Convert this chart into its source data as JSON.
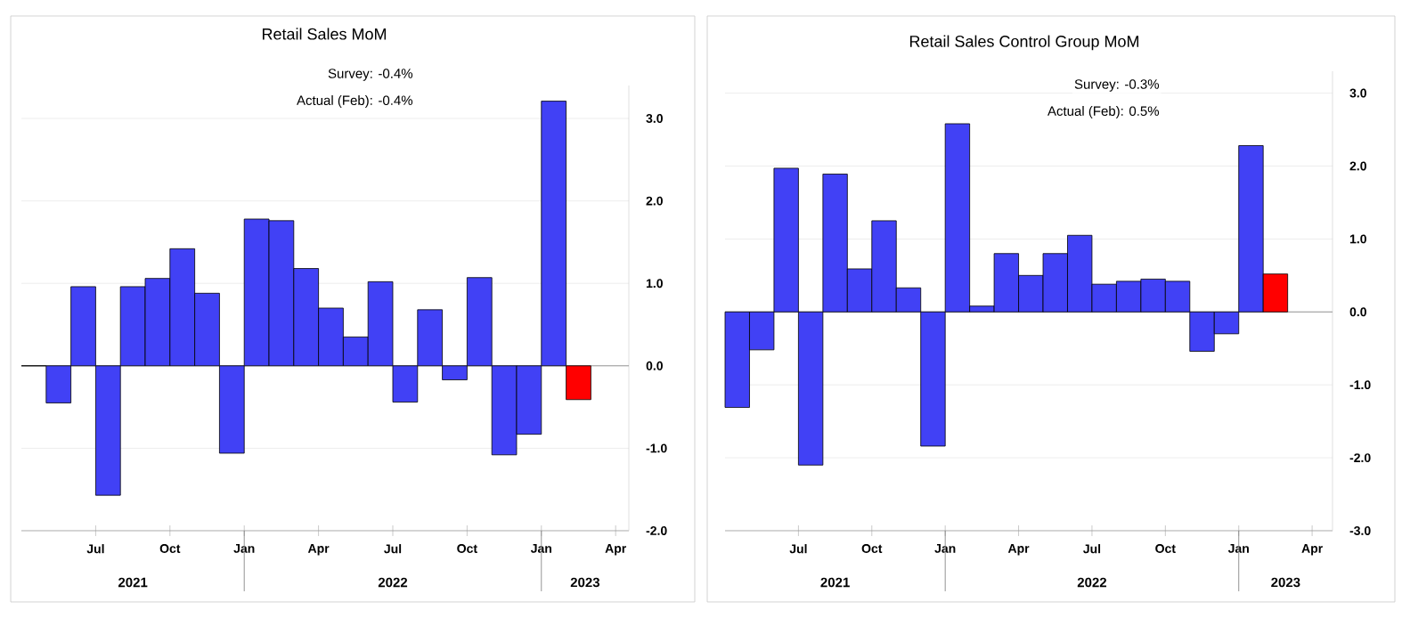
{
  "chart_data": [
    {
      "type": "bar",
      "title": "Retail Sales MoM",
      "annotations": [
        "Survey:  -0.4%",
        "Actual (Feb):  -0.4%",
        "2021",
        "2022",
        "2023"
      ],
      "x": [
        "2021-04-16",
        "2021-05-16",
        "2021-06-16",
        "2021-07-16",
        "2021-08-16",
        "2021-09-16",
        "2021-10-16",
        "2021-11-16",
        "2021-12-16",
        "2022-01-16",
        "2022-02-16",
        "2022-03-16",
        "2022-04-16",
        "2022-05-16",
        "2022-06-16",
        "2022-07-16",
        "2022-08-16",
        "2022-09-16",
        "2022-10-16",
        "2022-11-16",
        "2022-12-16",
        "2023-01-16",
        "2023-02-16"
      ],
      "values": [
        0.0,
        -0.45,
        0.96,
        -1.57,
        0.96,
        1.06,
        1.42,
        0.88,
        -1.06,
        1.78,
        1.76,
        1.18,
        0.7,
        0.35,
        1.02,
        -0.44,
        0.68,
        -0.17,
        1.07,
        -1.08,
        -0.83,
        3.21,
        -0.41
      ],
      "colors": [
        "#4141f5",
        "#4141f5",
        "#4141f5",
        "#4141f5",
        "#4141f5",
        "#4141f5",
        "#4141f5",
        "#4141f5",
        "#4141f5",
        "#4141f5",
        "#4141f5",
        "#4141f5",
        "#4141f5",
        "#4141f5",
        "#4141f5",
        "#4141f5",
        "#4141f5",
        "#4141f5",
        "#4141f5",
        "#4141f5",
        "#4141f5",
        "#4141f5",
        "#ff0000"
      ],
      "xlim": [
        "2021-04-01",
        "2023-04-17"
      ],
      "xticks": [
        {
          "value": "2021-07",
          "label": "Jul"
        },
        {
          "value": "2021-10",
          "label": "Oct"
        },
        {
          "value": "2022-01",
          "label": "Jan"
        },
        {
          "value": "2022-04",
          "label": "Apr"
        },
        {
          "value": "2022-07",
          "label": "Jul"
        },
        {
          "value": "2022-10",
          "label": "Oct"
        },
        {
          "value": "2023-01",
          "label": "Jan"
        },
        {
          "value": "2023-04",
          "label": "Apr"
        }
      ],
      "ylim": [
        -2,
        3.4
      ],
      "yticks": [
        {
          "value": -2,
          "label": "-2.0"
        },
        {
          "value": -1,
          "label": "-1.0"
        },
        {
          "value": 0,
          "label": "0.0"
        },
        {
          "value": 1,
          "label": "1.0"
        },
        {
          "value": 2,
          "label": "2.0"
        },
        {
          "value": 3,
          "label": "3.0"
        }
      ],
      "ref_lines": [
        {
          "axis": "y",
          "value": 0,
          "color": "#808080"
        }
      ],
      "grid": "y"
    },
    {
      "type": "bar",
      "title": "Retail Sales Control Group MoM",
      "annotations": [
        "Survey:  -0.3%",
        "Actual (Feb):  0.5%",
        "2021",
        "2022",
        "2023"
      ],
      "x": [
        "2021-04-16",
        "2021-05-16",
        "2021-06-16",
        "2021-07-16",
        "2021-08-16",
        "2021-09-16",
        "2021-10-16",
        "2021-11-16",
        "2021-12-16",
        "2022-01-16",
        "2022-02-16",
        "2022-03-16",
        "2022-04-16",
        "2022-05-16",
        "2022-06-16",
        "2022-07-16",
        "2022-08-16",
        "2022-09-16",
        "2022-10-16",
        "2022-11-16",
        "2022-12-16",
        "2023-01-16",
        "2023-02-16"
      ],
      "values": [
        -1.31,
        -0.52,
        1.97,
        -2.1,
        1.89,
        0.59,
        1.25,
        0.33,
        -1.84,
        2.58,
        0.08,
        0.8,
        0.5,
        0.8,
        1.05,
        0.38,
        0.42,
        0.45,
        0.42,
        -0.54,
        -0.3,
        2.28,
        0.52
      ],
      "colors": [
        "#4141f5",
        "#4141f5",
        "#4141f5",
        "#4141f5",
        "#4141f5",
        "#4141f5",
        "#4141f5",
        "#4141f5",
        "#4141f5",
        "#4141f5",
        "#4141f5",
        "#4141f5",
        "#4141f5",
        "#4141f5",
        "#4141f5",
        "#4141f5",
        "#4141f5",
        "#4141f5",
        "#4141f5",
        "#4141f5",
        "#4141f5",
        "#4141f5",
        "#ff0000"
      ],
      "xlim": [
        "2021-04-01",
        "2023-04-26"
      ],
      "xticks": [
        {
          "value": "2021-07",
          "label": "Jul"
        },
        {
          "value": "2021-10",
          "label": "Oct"
        },
        {
          "value": "2022-01",
          "label": "Jan"
        },
        {
          "value": "2022-04",
          "label": "Apr"
        },
        {
          "value": "2022-07",
          "label": "Jul"
        },
        {
          "value": "2022-10",
          "label": "Oct"
        },
        {
          "value": "2023-01",
          "label": "Jan"
        },
        {
          "value": "2023-04",
          "label": "Apr"
        }
      ],
      "ylim": [
        -3,
        3.3
      ],
      "yticks": [
        {
          "value": -3,
          "label": "-3.0"
        },
        {
          "value": -2,
          "label": "-2.0"
        },
        {
          "value": -1,
          "label": "-1.0"
        },
        {
          "value": 0,
          "label": "0.0"
        },
        {
          "value": 1,
          "label": "1.0"
        },
        {
          "value": 2,
          "label": "2.0"
        },
        {
          "value": 3,
          "label": "3.0"
        }
      ],
      "ref_lines": [
        {
          "axis": "y",
          "value": 0,
          "color": "#808080"
        }
      ],
      "grid": "y"
    }
  ]
}
